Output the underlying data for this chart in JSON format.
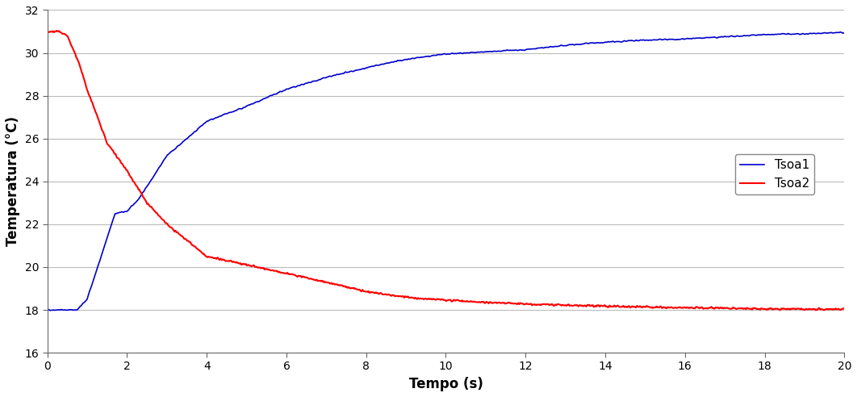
{
  "title": "",
  "xlabel": "Tempo (s)",
  "ylabel": "Temperatura (°C)",
  "xlim": [
    0,
    20
  ],
  "ylim": [
    16,
    32
  ],
  "yticks": [
    16,
    18,
    20,
    22,
    24,
    26,
    28,
    30,
    32
  ],
  "xticks": [
    0,
    2,
    4,
    6,
    8,
    10,
    12,
    14,
    16,
    18,
    20
  ],
  "line1_color": "#0000CC",
  "line2_color": "#FF0000",
  "line1_label": "Tsoa1",
  "line2_label": "Tsoa2",
  "background_color": "#FFFFFF",
  "grid_color": "#BBBBBB",
  "tsoa1_keypoints_t": [
    0,
    0.75,
    1.0,
    1.7,
    2.0,
    2.3,
    3.0,
    4.0,
    5.0,
    6.0,
    7.0,
    8.0,
    9.0,
    10.0,
    11.0,
    12.0,
    13.0,
    14.0,
    15.0,
    16.0,
    17.0,
    18.0,
    19.0,
    20.0
  ],
  "tsoa1_keypoints_v": [
    18.0,
    18.0,
    18.5,
    22.5,
    22.6,
    23.2,
    25.2,
    26.8,
    27.5,
    28.3,
    28.85,
    29.3,
    29.7,
    29.95,
    30.05,
    30.15,
    30.35,
    30.5,
    30.6,
    30.65,
    30.75,
    30.85,
    30.9,
    30.95
  ],
  "tsoa2_keypoints_t": [
    0,
    0.3,
    0.5,
    0.8,
    1.0,
    1.5,
    2.0,
    2.5,
    3.0,
    4.0,
    5.0,
    6.0,
    7.0,
    8.0,
    9.0,
    10.0,
    11.0,
    12.0,
    13.0,
    14.0,
    15.0,
    16.0,
    17.0,
    18.0,
    19.0,
    20.0
  ],
  "tsoa2_keypoints_v": [
    31.0,
    31.0,
    30.8,
    29.5,
    28.3,
    25.8,
    24.5,
    23.0,
    22.0,
    20.5,
    20.1,
    19.7,
    19.3,
    18.85,
    18.6,
    18.45,
    18.35,
    18.28,
    18.22,
    18.18,
    18.13,
    18.1,
    18.08,
    18.05,
    18.03,
    18.02
  ]
}
